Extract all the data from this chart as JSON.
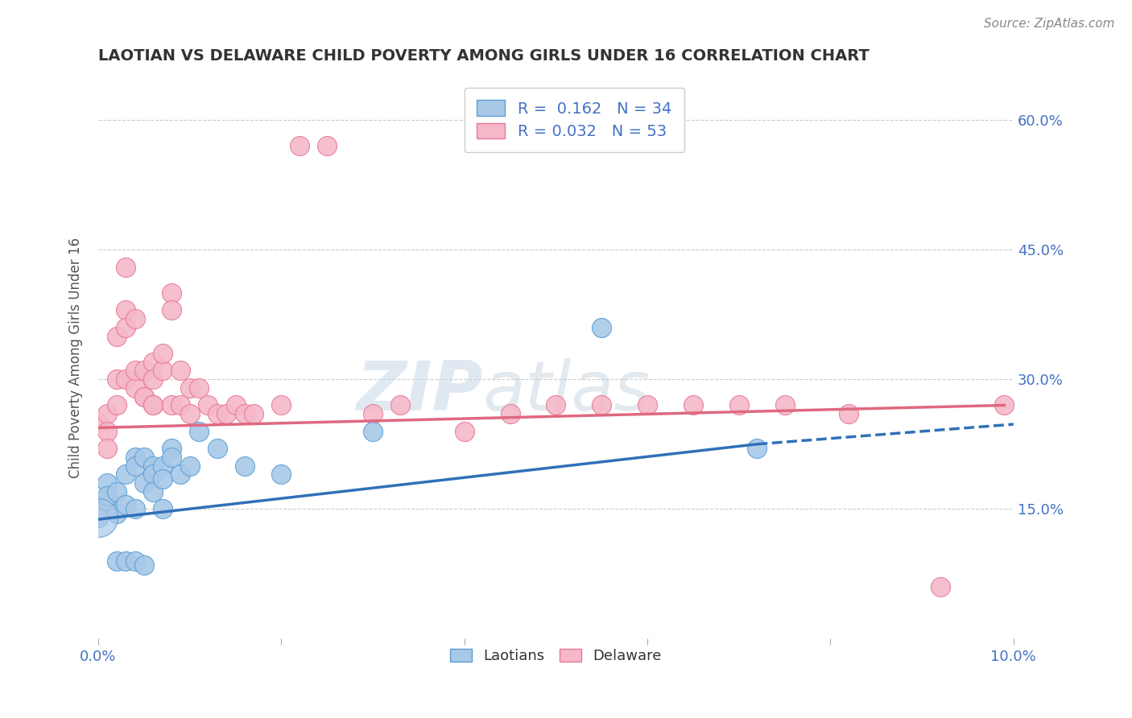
{
  "title": "LAOTIAN VS DELAWARE CHILD POVERTY AMONG GIRLS UNDER 16 CORRELATION CHART",
  "source": "Source: ZipAtlas.com",
  "ylabel": "Child Poverty Among Girls Under 16",
  "watermark_zip": "ZIP",
  "watermark_atlas": "atlas",
  "xlim": [
    0.0,
    0.1
  ],
  "ylim": [
    0.0,
    0.65
  ],
  "xticks": [
    0.0,
    0.02,
    0.04,
    0.06,
    0.08,
    0.1
  ],
  "xtick_labels": [
    "0.0%",
    "",
    "",
    "",
    "",
    "10.0%"
  ],
  "ytick_positions": [
    0.0,
    0.15,
    0.3,
    0.45,
    0.6
  ],
  "ytick_labels": [
    "",
    "15.0%",
    "30.0%",
    "45.0%",
    "60.0%"
  ],
  "blue_R": "0.162",
  "blue_N": "34",
  "pink_R": "0.032",
  "pink_N": "53",
  "blue_color": "#a8c8e8",
  "pink_color": "#f4b8c8",
  "blue_edge_color": "#5a9fd4",
  "pink_edge_color": "#e87898",
  "blue_line_color": "#3070b8",
  "pink_line_color": "#e06880",
  "laotian_x": [
    0.0,
    0.001,
    0.001,
    0.001,
    0.002,
    0.002,
    0.002,
    0.003,
    0.003,
    0.003,
    0.004,
    0.004,
    0.004,
    0.004,
    0.005,
    0.005,
    0.005,
    0.006,
    0.006,
    0.006,
    0.007,
    0.007,
    0.007,
    0.008,
    0.008,
    0.009,
    0.01,
    0.011,
    0.013,
    0.016,
    0.02,
    0.03,
    0.055,
    0.072
  ],
  "laotian_y": [
    0.14,
    0.16,
    0.18,
    0.165,
    0.17,
    0.145,
    0.09,
    0.19,
    0.155,
    0.09,
    0.21,
    0.2,
    0.15,
    0.09,
    0.18,
    0.21,
    0.085,
    0.2,
    0.19,
    0.17,
    0.2,
    0.185,
    0.15,
    0.22,
    0.21,
    0.19,
    0.2,
    0.24,
    0.22,
    0.2,
    0.19,
    0.24,
    0.36,
    0.22
  ],
  "delaware_x": [
    0.0,
    0.001,
    0.001,
    0.001,
    0.002,
    0.002,
    0.002,
    0.003,
    0.003,
    0.003,
    0.003,
    0.004,
    0.004,
    0.004,
    0.005,
    0.005,
    0.005,
    0.006,
    0.006,
    0.006,
    0.006,
    0.007,
    0.007,
    0.008,
    0.008,
    0.008,
    0.009,
    0.009,
    0.01,
    0.01,
    0.011,
    0.012,
    0.013,
    0.014,
    0.015,
    0.016,
    0.017,
    0.02,
    0.022,
    0.025,
    0.03,
    0.033,
    0.04,
    0.045,
    0.05,
    0.055,
    0.06,
    0.065,
    0.07,
    0.075,
    0.082,
    0.092,
    0.099
  ],
  "delaware_y": [
    0.25,
    0.26,
    0.24,
    0.22,
    0.27,
    0.35,
    0.3,
    0.3,
    0.38,
    0.43,
    0.36,
    0.29,
    0.31,
    0.37,
    0.31,
    0.28,
    0.28,
    0.32,
    0.27,
    0.27,
    0.3,
    0.31,
    0.33,
    0.4,
    0.38,
    0.27,
    0.27,
    0.31,
    0.29,
    0.26,
    0.29,
    0.27,
    0.26,
    0.26,
    0.27,
    0.26,
    0.26,
    0.27,
    0.57,
    0.57,
    0.26,
    0.27,
    0.24,
    0.26,
    0.27,
    0.27,
    0.27,
    0.27,
    0.27,
    0.27,
    0.26,
    0.06,
    0.27
  ],
  "blue_line_x0": 0.0,
  "blue_line_y0": 0.138,
  "blue_line_x1_solid": 0.072,
  "blue_line_y1_solid": 0.225,
  "blue_line_x1_dash": 0.1,
  "blue_line_y1_dash": 0.248,
  "pink_line_x0": 0.0,
  "pink_line_y0": 0.244,
  "pink_line_x1": 0.099,
  "pink_line_y1": 0.27
}
